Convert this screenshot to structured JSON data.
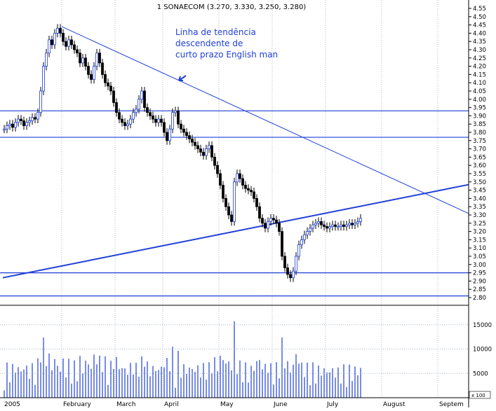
{
  "chart_data": {
    "type": "candlestick",
    "title": "1 SONAECOM (3.270, 3.330, 3.250, 3.280)",
    "annotation": [
      "Linha de tendência",
      "descendente de",
      "curto prazo English man"
    ],
    "price_axis": {
      "ylim": [
        2.8,
        4.55
      ],
      "tick_labels": [
        "4.55",
        "4.50",
        "4.45",
        "4.40",
        "4.35",
        "4.30",
        "4.25",
        "4.20",
        "4.15",
        "4.10",
        "4.05",
        "4.00",
        "3.95",
        "3.90",
        "3.85",
        "3.80",
        "3.75",
        "3.70",
        "3.65",
        "3.60",
        "3.55",
        "3.50",
        "3.45",
        "3.40",
        "3.35",
        "3.30",
        "3.25",
        "3.20",
        "3.15",
        "3.10",
        "3.05",
        "3.00",
        "2.95",
        "2.90",
        "2.85",
        "2.80"
      ]
    },
    "volume_axis": {
      "ylim": [
        0,
        19000
      ],
      "tick_labels": [
        "15000",
        "10000",
        "5000"
      ],
      "unit_label": "x 100"
    },
    "x_labels": [
      {
        "label": "2005",
        "day": 0
      },
      {
        "label": "February",
        "day": 21
      },
      {
        "label": "March",
        "day": 40
      },
      {
        "label": "April",
        "day": 57
      },
      {
        "label": "May",
        "day": 77
      },
      {
        "label": "June",
        "day": 96
      },
      {
        "label": "July",
        "day": 115
      },
      {
        "label": "August",
        "day": 135
      },
      {
        "label": "Septem",
        "day": 155
      }
    ],
    "horizontal_lines": [
      3.93,
      3.77,
      2.95,
      2.81
    ],
    "trendlines": [
      {
        "name": "descending-trendline",
        "from": [
          21,
          4.44
        ],
        "to": [
          162,
          3.34
        ]
      },
      {
        "name": "ascending-trendline",
        "from": [
          0,
          2.92
        ],
        "to": [
          162,
          3.47
        ]
      }
    ],
    "closes": [
      3.82,
      3.84,
      3.85,
      3.83,
      3.86,
      3.88,
      3.87,
      3.84,
      3.86,
      3.87,
      3.89,
      3.88,
      3.92,
      4.05,
      4.2,
      4.28,
      4.36,
      4.33,
      4.4,
      4.43,
      4.4,
      4.35,
      4.32,
      4.36,
      4.33,
      4.3,
      4.28,
      4.22,
      4.25,
      4.2,
      4.15,
      4.12,
      4.2,
      4.28,
      4.22,
      4.15,
      4.1,
      4.08,
      4.05,
      3.98,
      3.92,
      3.88,
      3.86,
      3.84,
      3.85,
      3.88,
      3.92,
      3.94,
      4.0,
      4.05,
      3.95,
      3.92,
      3.9,
      3.88,
      3.86,
      3.88,
      3.86,
      3.8,
      3.75,
      3.82,
      3.92,
      3.93,
      3.85,
      3.82,
      3.8,
      3.78,
      3.76,
      3.74,
      3.72,
      3.7,
      3.68,
      3.66,
      3.7,
      3.72,
      3.65,
      3.6,
      3.55,
      3.48,
      3.4,
      3.35,
      3.3,
      3.26,
      3.5,
      3.55,
      3.52,
      3.48,
      3.46,
      3.45,
      3.44,
      3.4,
      3.35,
      3.28,
      3.25,
      3.22,
      3.26,
      3.28,
      3.27,
      3.25,
      3.2,
      3.05,
      2.98,
      2.94,
      2.92,
      2.96,
      3.05,
      3.12,
      3.15,
      3.18,
      3.2,
      3.22,
      3.24,
      3.25,
      3.26,
      3.24,
      3.23,
      3.22,
      3.23,
      3.24,
      3.23,
      3.23,
      3.24,
      3.23,
      3.24,
      3.25,
      3.24,
      3.25,
      3.26,
      3.28
    ]
  }
}
